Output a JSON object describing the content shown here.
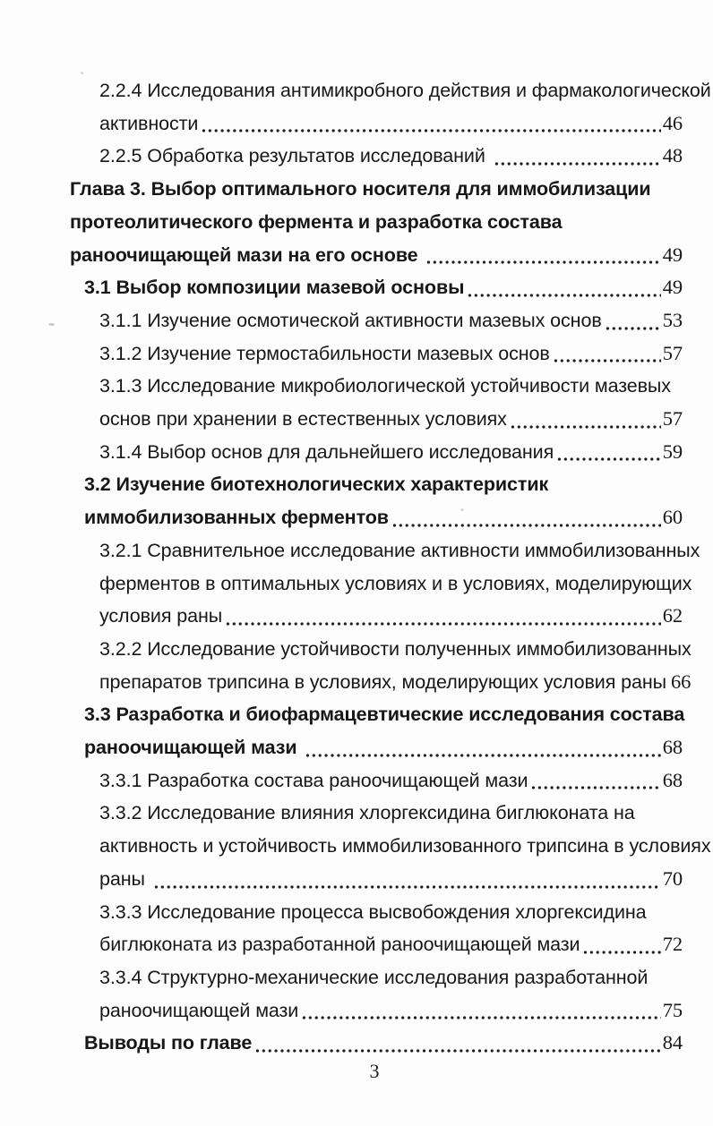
{
  "page": {
    "page_number": "3"
  },
  "toc": {
    "entries": [
      {
        "level": "subsection",
        "lines": [
          "2.2.4 Исследования антимикробного действия и фармакологической",
          "активности"
        ],
        "page": "46"
      },
      {
        "level": "subsection",
        "lines": [
          "2.2.5 Обработка результатов исследований "
        ],
        "page": "48"
      },
      {
        "level": "chapter",
        "lines": [
          "Глава 3. Выбор оптимального носителя для иммобилизации",
          "протеолитического фермента и разработка состава",
          "раноочищающей мази на его основе "
        ],
        "page": "49"
      },
      {
        "level": "section",
        "lines": [
          "3.1 Выбор композиции мазевой основы"
        ],
        "page": "49"
      },
      {
        "level": "subsection",
        "lines": [
          "3.1.1 Изучение осмотической активности мазевых основ"
        ],
        "page": "53"
      },
      {
        "level": "subsection",
        "lines": [
          "3.1.2 Изучение термостабильности мазевых основ"
        ],
        "page": "57"
      },
      {
        "level": "subsection",
        "lines": [
          "3.1.3 Исследование микробиологической устойчивости мазевых",
          "основ при хранении в естественных условиях"
        ],
        "page": "57"
      },
      {
        "level": "subsection",
        "lines": [
          "3.1.4 Выбор основ для дальнейшего исследования"
        ],
        "page": "59"
      },
      {
        "level": "section",
        "lines": [
          "3.2 Изучение биотехнологических характеристик",
          "иммобилизованных ферментов"
        ],
        "page": "60"
      },
      {
        "level": "subsection",
        "lines": [
          "3.2.1 Сравнительное исследование активности иммобилизованных",
          "ферментов в оптимальных условиях и в условиях, моделирующих",
          "условия раны"
        ],
        "page": "62"
      },
      {
        "level": "subsection",
        "lines": [
          "3.2.2 Исследование устойчивости полученных иммобилизованных",
          "препаратов трипсина в условиях, моделирующих условия раны"
        ],
        "page": "66"
      },
      {
        "level": "section",
        "lines": [
          "3.3 Разработка и биофармацевтические исследования состава",
          "раноочищающей мази "
        ],
        "page": "68"
      },
      {
        "level": "subsection",
        "lines": [
          "3.3.1 Разработка состава раноочищающей мази"
        ],
        "page": "68"
      },
      {
        "level": "subsection",
        "lines": [
          "3.3.2 Исследование влияния хлоргексидина биглюконата на",
          "активность и устойчивость иммобилизованного трипсина в условиях",
          "раны "
        ],
        "page": "70"
      },
      {
        "level": "subsection",
        "lines": [
          "3.3.3 Исследование процесса высвобождения хлоргексидина",
          "биглюконата из разработанной раноочищающей мази"
        ],
        "page": "72"
      },
      {
        "level": "subsection",
        "lines": [
          "3.3.4 Структурно-механические исследования разработанной",
          "раноочищающей мази"
        ],
        "page": "75"
      },
      {
        "level": "section",
        "lines": [
          "Выводы по главе"
        ],
        "page": "84"
      }
    ]
  }
}
